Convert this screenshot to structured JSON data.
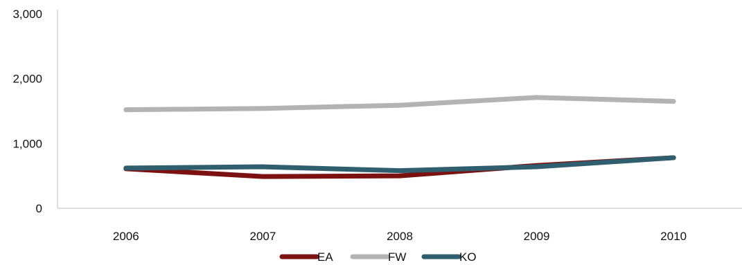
{
  "chart_data": {
    "type": "line",
    "title": "",
    "xlabel": "",
    "ylabel": "",
    "categories": [
      "2006",
      "2007",
      "2008",
      "2009",
      "2010"
    ],
    "ylim": [
      0,
      3000
    ],
    "yticks": [
      0,
      1000,
      2000,
      3000
    ],
    "ytick_labels": [
      "0",
      "1,000",
      "2,000",
      "3,000"
    ],
    "grid": false,
    "legend_position": "bottom",
    "series": [
      {
        "name": "EA",
        "color": "#7B1111",
        "values": [
          610,
          490,
          500,
          660,
          780
        ]
      },
      {
        "name": "FW",
        "color": "#B3B3B3",
        "values": [
          1520,
          1540,
          1590,
          1710,
          1650
        ]
      },
      {
        "name": "KO",
        "color": "#2F5F6E",
        "values": [
          620,
          640,
          580,
          640,
          780
        ]
      }
    ]
  }
}
